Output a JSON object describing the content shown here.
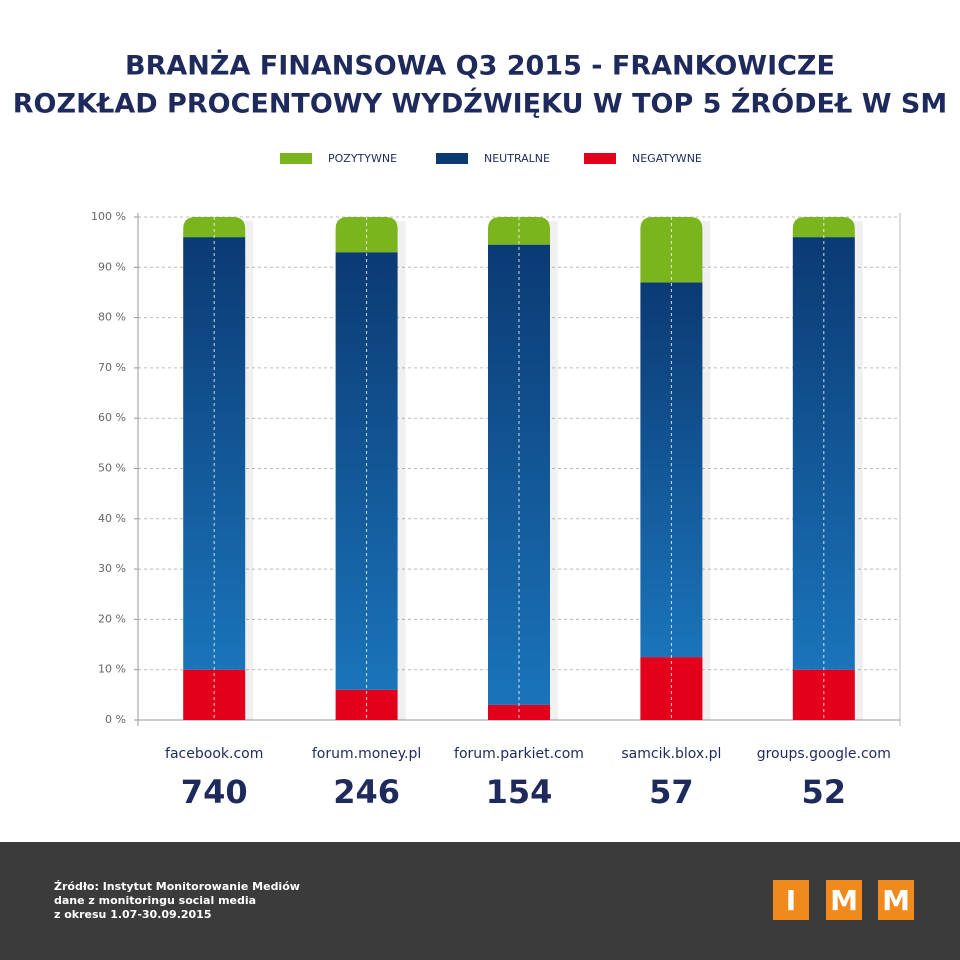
{
  "chart_data": {
    "type": "stacked_bar_100",
    "title": "BRANŻA FINANSOWA Q3 2015 - FRANKOWICZE",
    "subtitle": "ROZKŁAD PROCENTOWY WYDŹWIĘKU W TOP 5 ŹRÓDEŁ W SM",
    "categories": [
      "facebook.com",
      "forum.money.pl",
      "forum.parkiet.com",
      "samcik.blox.pl",
      "groups.google.com"
    ],
    "totals": [
      740,
      246,
      154,
      57,
      52
    ],
    "series": [
      {
        "name": "POZYTYWNE",
        "color": "#7ab51d",
        "values": [
          4,
          7,
          5.5,
          13,
          4
        ]
      },
      {
        "name": "NEUTRALNE",
        "color": "#0b3a73",
        "values": [
          86,
          87,
          91.5,
          74.5,
          86
        ]
      },
      {
        "name": "NEGATYWNE",
        "color": "#e2001a",
        "values": [
          10,
          6,
          3,
          12.5,
          10
        ]
      }
    ],
    "ylim": [
      0,
      100
    ],
    "yticks": [
      {
        "value": 0,
        "label": "0 %"
      },
      {
        "value": 10,
        "label": "10 %"
      },
      {
        "value": 20,
        "label": "20 %"
      },
      {
        "value": 30,
        "label": "30 %"
      },
      {
        "value": 40,
        "label": "40 %"
      },
      {
        "value": 50,
        "label": "50 %"
      },
      {
        "value": 60,
        "label": "60 %"
      },
      {
        "value": 70,
        "label": "70 %"
      },
      {
        "value": 80,
        "label": "80 %"
      },
      {
        "value": 90,
        "label": "90 %"
      },
      {
        "value": 100,
        "label": "100 %"
      }
    ],
    "grid": true
  },
  "footer": {
    "source": [
      "Źródło: Instytut Monitorowanie Mediów",
      "dane z monitoringu social media",
      "z okresu 1.07-30.09.2015"
    ],
    "logo": [
      "I",
      "M",
      "M"
    ]
  }
}
